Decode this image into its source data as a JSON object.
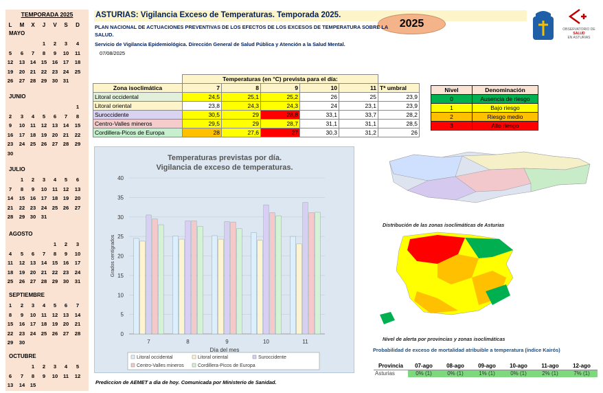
{
  "calendar": {
    "title": "TEMPORADA 2025",
    "dow": [
      "L",
      "M",
      "X",
      "J",
      "V",
      "S",
      "D"
    ],
    "months": [
      {
        "name": "MAYO",
        "weeks": [
          [
            "",
            "",
            "",
            "1",
            "2",
            "3",
            "4"
          ],
          [
            "5",
            "6",
            "7",
            "8",
            "9",
            "10",
            "11"
          ],
          [
            "12",
            "13",
            "14",
            "15",
            "16",
            "17",
            "18"
          ],
          [
            "19",
            "20",
            "21",
            "22",
            "23",
            "24",
            "25"
          ],
          [
            "26",
            "27",
            "28",
            "29",
            "30",
            "31",
            ""
          ]
        ]
      },
      {
        "name": "JUNIO",
        "weeks": [
          [
            "",
            "",
            "",
            "",
            "",
            "",
            "1"
          ],
          [
            "2",
            "3",
            "4",
            "5",
            "6",
            "7",
            "8"
          ],
          [
            "9",
            "10",
            "11",
            "12",
            "13",
            "14",
            "15"
          ],
          [
            "16",
            "17",
            "18",
            "19",
            "20",
            "21",
            "22"
          ],
          [
            "23",
            "24",
            "25",
            "26",
            "27",
            "28",
            "29"
          ],
          [
            "30",
            "",
            "",
            "",
            "",
            "",
            ""
          ]
        ]
      },
      {
        "name": "JULIO",
        "weeks": [
          [
            "",
            "1",
            "2",
            "3",
            "4",
            "5",
            "6"
          ],
          [
            "7",
            "8",
            "9",
            "10",
            "11",
            "12",
            "13"
          ],
          [
            "14",
            "15",
            "16",
            "17",
            "18",
            "19",
            "20"
          ],
          [
            "21",
            "22",
            "23",
            "24",
            "25",
            "26",
            "27"
          ],
          [
            "28",
            "29",
            "30",
            "31",
            "",
            "",
            ""
          ]
        ]
      },
      {
        "name": "AGOSTO",
        "weeks": [
          [
            "",
            "",
            "",
            "",
            "1",
            "2",
            "3"
          ],
          [
            "4",
            "5",
            "6",
            "7",
            "8",
            "9",
            "10"
          ],
          [
            "11",
            "12",
            "13",
            "14",
            "15",
            "16",
            "17"
          ],
          [
            "18",
            "19",
            "20",
            "21",
            "22",
            "23",
            "24"
          ],
          [
            "25",
            "26",
            "27",
            "28",
            "29",
            "30",
            "31"
          ]
        ]
      },
      {
        "name": "SEPTIEMBRE",
        "weeks": [
          [
            "1",
            "2",
            "3",
            "4",
            "5",
            "6",
            "7"
          ],
          [
            "8",
            "9",
            "10",
            "11",
            "12",
            "13",
            "14"
          ],
          [
            "15",
            "16",
            "17",
            "18",
            "19",
            "20",
            "21"
          ],
          [
            "22",
            "23",
            "24",
            "25",
            "26",
            "27",
            "28"
          ],
          [
            "29",
            "30",
            "",
            "",
            "",
            "",
            ""
          ]
        ]
      },
      {
        "name": "OCTUBRE",
        "weeks": [
          [
            "",
            "",
            "1",
            "2",
            "3",
            "4",
            "5"
          ],
          [
            "6",
            "7",
            "8",
            "9",
            "10",
            "11",
            "12"
          ],
          [
            "13",
            "14",
            "15",
            "",
            "",
            "",
            ""
          ]
        ]
      }
    ]
  },
  "header": {
    "title": "ASTURIAS: Vigilancia Exceso de Temperaturas. Temporada 2025.",
    "year_badge": "2025",
    "plan_line1": "PLAN NACIONAL DE ACTUACIONES PREVENTIVAS DE LOS EFECTOS DE LOS EXCESOS DE TEMPERATURA SOBRE LA",
    "plan_line2": "SALUD.",
    "service": "Servicio de Vigilancia Epidemiológica. Dirección General de Salud Pública y Atención a la Salud Mental.",
    "date": "07/08/2025",
    "logo_text": [
      "OBSERVATORIO DE",
      "SALUD",
      "EN ASTURIAS"
    ]
  },
  "temps": {
    "group_header": "Temperaturas (en °C) prevista para el día:",
    "zone_header": "Zona isoclimática",
    "days": [
      "7",
      "8",
      "9",
      "10",
      "11"
    ],
    "umbral_header": "Tª umbral",
    "rows": [
      {
        "zone": "Litoral occidental",
        "values": [
          "24,5",
          "25,1",
          "25,2",
          "26",
          "25"
        ],
        "umbral": "23,9",
        "colors": [
          "#ffff00",
          "#ffff00",
          "#ffff00",
          "#ffffff",
          "#ffffff"
        ],
        "bg": "#e2efda"
      },
      {
        "zone": "Litoral oriental",
        "values": [
          "23,8",
          "24,3",
          "24,3",
          "24",
          "23,1"
        ],
        "umbral": "23,9",
        "colors": [
          "#ffffff",
          "#ffff00",
          "#ffff00",
          "#ffffff",
          "#ffffff"
        ],
        "bg": "#fdf5c9"
      },
      {
        "zone": "Suroccidente",
        "values": [
          "30,5",
          "29",
          "28,8",
          "33,1",
          "33,7"
        ],
        "umbral": "28,2",
        "colors": [
          "#ffff00",
          "#ffff00",
          "#ff0000",
          "#ffffff",
          "#ffffff"
        ],
        "bg": "#d9d2f0"
      },
      {
        "zone": "Centro-Valles mineros",
        "values": [
          "29,5",
          "29",
          "28,7",
          "31,1",
          "31,1"
        ],
        "umbral": "28,5",
        "colors": [
          "#ffff00",
          "#ffff00",
          "#ffff00",
          "#ffffff",
          "#ffffff"
        ],
        "bg": "#f4cccc"
      },
      {
        "zone": "Cordillera-Picos de Europa",
        "values": [
          "28",
          "27,6",
          "27",
          "30,3",
          "31,2"
        ],
        "umbral": "26",
        "colors": [
          "#ffc000",
          "#ffff00",
          "#ff0000",
          "#ffffff",
          "#ffffff"
        ],
        "bg": "#c6efce"
      }
    ]
  },
  "levels": {
    "header_level": "Nivel",
    "header_name": "Denominación",
    "rows": [
      {
        "level": "0",
        "name": "Ausencia de riesgo",
        "color": "#00b050"
      },
      {
        "level": "1",
        "name": "Bajo riesgo",
        "color": "#ffff00"
      },
      {
        "level": "2",
        "name": "Riesgo medio",
        "color": "#ffc000"
      },
      {
        "level": "3",
        "name": "Alto riesgo",
        "color": "#ff0000"
      }
    ]
  },
  "chart_data": {
    "type": "bar",
    "title_line1": "Temperaturas previstas por día.",
    "title_line2": "Vigilancia de exceso de temperaturas.",
    "xlabel": "Día del mes",
    "ylabel": "Grados centígrados",
    "ylim": [
      0,
      40
    ],
    "yticks": [
      "0",
      "5",
      "10",
      "15",
      "20",
      "25",
      "30",
      "35",
      "40"
    ],
    "categories": [
      "7",
      "8",
      "9",
      "10",
      "11"
    ],
    "series": [
      {
        "name": "Litoral occidental",
        "color": "#dcefff",
        "values": [
          24.5,
          25.1,
          25.2,
          26,
          25
        ]
      },
      {
        "name": "Litoral oriental",
        "color": "#fff4d2",
        "values": [
          23.8,
          24.3,
          24.3,
          24,
          23.1
        ]
      },
      {
        "name": "Suroccidente",
        "color": "#d9cff5",
        "values": [
          30.5,
          29,
          28.8,
          33.1,
          33.7
        ]
      },
      {
        "name": "Centro-Valles mineros",
        "color": "#f5c9c9",
        "values": [
          29.5,
          29,
          28.7,
          31.1,
          31.1
        ]
      },
      {
        "name": "Cordillera-Picos de Europa",
        "color": "#d4f2d4",
        "values": [
          28,
          27.6,
          27,
          30.3,
          31.2
        ]
      }
    ]
  },
  "maps": {
    "caption1": "Distribución de las zonas isoclimáticas de Asturias",
    "caption2": "Nivel de alerta por provincias y zonas isoclimáticas"
  },
  "kairos": {
    "title": "Probabilidad de exceso de mortalidad atribuible a temperatura (índice Kairós)",
    "headers": [
      "Provincia",
      "07-ago",
      "08-ago",
      "09-ago",
      "10-ago",
      "11-ago",
      "12-ago"
    ],
    "row_name": "Asturias",
    "values": [
      "0% (1)",
      "0% (1)",
      "1% (1)",
      "0% (1)",
      "2% (1)",
      "7% (1)"
    ]
  },
  "footer": "Prediccion de AEMET a dia de hoy. Comunicada por Ministerio de Sanidad."
}
